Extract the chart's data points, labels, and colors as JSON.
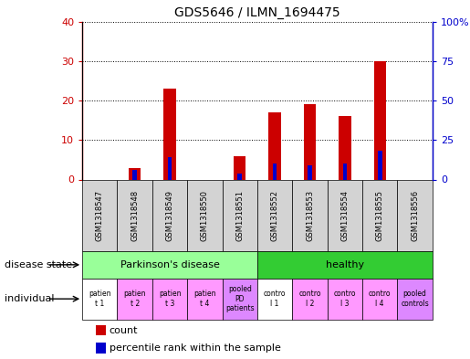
{
  "title": "GDS5646 / ILMN_1694475",
  "samples": [
    "GSM1318547",
    "GSM1318548",
    "GSM1318549",
    "GSM1318550",
    "GSM1318551",
    "GSM1318552",
    "GSM1318553",
    "GSM1318554",
    "GSM1318555",
    "GSM1318556"
  ],
  "count_values": [
    0,
    3,
    23,
    0,
    6,
    17,
    19,
    16,
    30,
    0
  ],
  "percentile_values": [
    0,
    6,
    14,
    0,
    4,
    10,
    9,
    10,
    18,
    0
  ],
  "ylim_left": [
    0,
    40
  ],
  "ylim_right": [
    0,
    100
  ],
  "yticks_left": [
    0,
    10,
    20,
    30,
    40
  ],
  "yticks_right": [
    0,
    25,
    50,
    75,
    100
  ],
  "bar_color": "#cc0000",
  "percentile_color": "#0000cc",
  "disease_state_groups": [
    {
      "label": "Parkinson's disease",
      "start": 0,
      "end": 4,
      "color": "#99ff99"
    },
    {
      "label": "healthy",
      "start": 5,
      "end": 9,
      "color": "#33cc33"
    }
  ],
  "individual_labels": [
    {
      "label": "patien\nt 1",
      "idx": 0,
      "color": "#ffffff"
    },
    {
      "label": "patien\nt 2",
      "idx": 1,
      "color": "#ff99ff"
    },
    {
      "label": "patien\nt 3",
      "idx": 2,
      "color": "#ff99ff"
    },
    {
      "label": "patien\nt 4",
      "idx": 3,
      "color": "#ff99ff"
    },
    {
      "label": "pooled\nPD\npatients",
      "idx": 4,
      "color": "#dd88ff"
    },
    {
      "label": "contro\nl 1",
      "idx": 5,
      "color": "#ffffff"
    },
    {
      "label": "contro\nl 2",
      "idx": 6,
      "color": "#ff99ff"
    },
    {
      "label": "contro\nl 3",
      "idx": 7,
      "color": "#ff99ff"
    },
    {
      "label": "contro\nl 4",
      "idx": 8,
      "color": "#ff99ff"
    },
    {
      "label": "pooled\ncontrols",
      "idx": 9,
      "color": "#dd88ff"
    }
  ],
  "sample_bg_color": "#d3d3d3",
  "left_label_color": "#cc0000",
  "right_label_color": "#0000cc",
  "disease_state_row_label": "disease state",
  "individual_row_label": "individual",
  "legend_count_label": "count",
  "legend_percentile_label": "percentile rank within the sample"
}
